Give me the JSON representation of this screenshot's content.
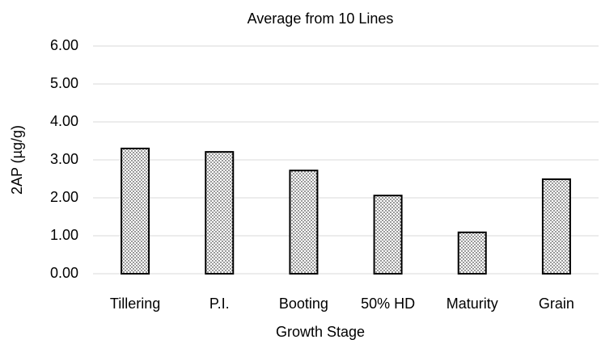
{
  "chart_data": {
    "type": "bar",
    "title": "Average from 10 Lines",
    "x_label": "Growth Stage",
    "y_label": "2AP (µg/g)",
    "categories": [
      "Tillering",
      "P.I.",
      "Booting",
      "50% HD",
      "Maturity",
      "Grain"
    ],
    "values": [
      3.3,
      3.21,
      2.72,
      2.06,
      1.09,
      2.49
    ],
    "color": "#000000",
    "ylim": [
      0,
      6
    ],
    "yticks": [
      {
        "value": 0,
        "label": "0.00"
      },
      {
        "value": 1,
        "label": "1.00"
      },
      {
        "value": 2,
        "label": "2.00"
      },
      {
        "value": 3,
        "label": "3.00"
      },
      {
        "value": 4,
        "label": "4.00"
      },
      {
        "value": 5,
        "label": "5.00"
      },
      {
        "value": 6,
        "label": "6.00"
      }
    ],
    "grid": true
  }
}
